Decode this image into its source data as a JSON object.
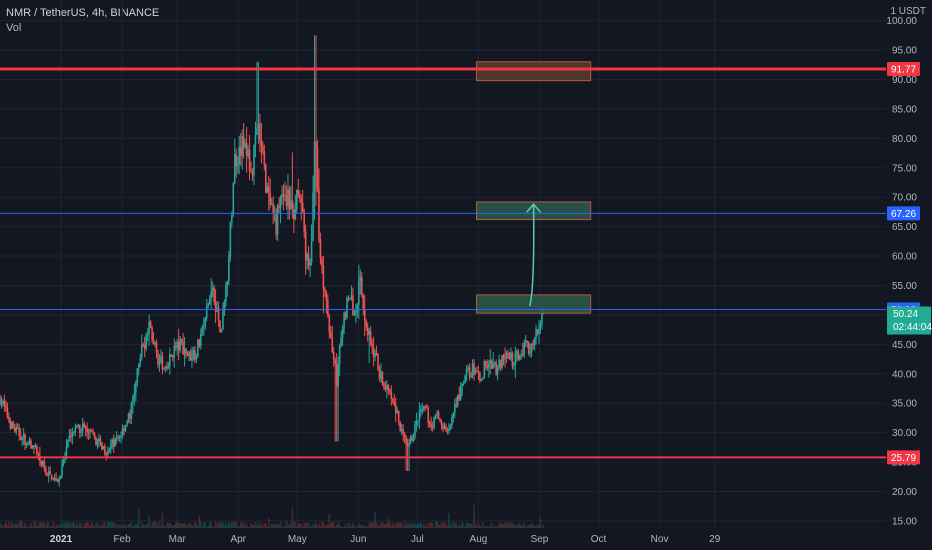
{
  "header": {
    "symbol": "NMR / TetherUS, 4h, BINANCE",
    "indicator": "Vol",
    "currency_unit": "1 USDT"
  },
  "colors": {
    "background": "#131722",
    "grid": "#1f2430",
    "axis_text": "#b2b5be",
    "up": "#26a69a",
    "down": "#ef5350",
    "support_resistance_red": "#f23645",
    "level_blue": "#2962ff",
    "current_price_badge": "#22ab94",
    "zone_fill_red": "#5c3b2e",
    "zone_fill_green": "#2e5a4a",
    "zone_stroke": "#b85a3a",
    "arrow": "#5fc9b3"
  },
  "chart_data": {
    "type": "candlestick",
    "title": "NMR / TetherUS, 4h, BINANCE",
    "ylim": [
      13.8,
      103.5
    ],
    "y_ticks": [
      15,
      20,
      25,
      30,
      35,
      40,
      45,
      50,
      55,
      60,
      65,
      70,
      75,
      80,
      85,
      90,
      95,
      100
    ],
    "y_tick_labels": [
      "15.00",
      "20.00",
      "25.00",
      "30.00",
      "35.00",
      "40.00",
      "45.00",
      "50.00",
      "55.00",
      "60.00",
      "65.00",
      "70.00",
      "75.00",
      "80.00",
      "85.00",
      "90.00",
      "95.00",
      "100.00"
    ],
    "x_ticks": [
      {
        "label": "2021",
        "day": 31,
        "bold": true
      },
      {
        "label": "Feb",
        "day": 62,
        "bold": false
      },
      {
        "label": "Mar",
        "day": 90,
        "bold": false
      },
      {
        "label": "Apr",
        "day": 121,
        "bold": false
      },
      {
        "label": "May",
        "day": 151,
        "bold": false
      },
      {
        "label": "Jun",
        "day": 182,
        "bold": false
      },
      {
        "label": "Jul",
        "day": 212,
        "bold": false
      },
      {
        "label": "Aug",
        "day": 243,
        "bold": false
      },
      {
        "label": "Sep",
        "day": 274,
        "bold": false
      },
      {
        "label": "Oct",
        "day": 304,
        "bold": false
      },
      {
        "label": "Nov",
        "day": 335,
        "bold": false
      },
      {
        "label": "29",
        "day": 363,
        "bold": false
      }
    ],
    "xlim_days": [
      0,
      450
    ],
    "price_path": [
      [
        0,
        36
      ],
      [
        6,
        31
      ],
      [
        12,
        29
      ],
      [
        18,
        27
      ],
      [
        24,
        23
      ],
      [
        30,
        22
      ],
      [
        36,
        30
      ],
      [
        42,
        31
      ],
      [
        48,
        29
      ],
      [
        54,
        27
      ],
      [
        60,
        29
      ],
      [
        66,
        33
      ],
      [
        72,
        44
      ],
      [
        76,
        48
      ],
      [
        80,
        43
      ],
      [
        84,
        40
      ],
      [
        88,
        44
      ],
      [
        92,
        45
      ],
      [
        96,
        43
      ],
      [
        100,
        44
      ],
      [
        104,
        49
      ],
      [
        108,
        55
      ],
      [
        112,
        47
      ],
      [
        116,
        58
      ],
      [
        119,
        76
      ],
      [
        122,
        79
      ],
      [
        125,
        78
      ],
      [
        128,
        74
      ],
      [
        131,
        82
      ],
      [
        134,
        75
      ],
      [
        137,
        68
      ],
      [
        140,
        65
      ],
      [
        143,
        71
      ],
      [
        146,
        70
      ],
      [
        149,
        67
      ],
      [
        152,
        73
      ],
      [
        155,
        61
      ],
      [
        158,
        58
      ],
      [
        160,
        85
      ],
      [
        162,
        62
      ],
      [
        165,
        54
      ],
      [
        168,
        46
      ],
      [
        171,
        39
      ],
      [
        174,
        48
      ],
      [
        177,
        54
      ],
      [
        180,
        50
      ],
      [
        183,
        56
      ],
      [
        186,
        48
      ],
      [
        189,
        45
      ],
      [
        192,
        41
      ],
      [
        195,
        38
      ],
      [
        198,
        36
      ],
      [
        201,
        34
      ],
      [
        204,
        30
      ],
      [
        207,
        27
      ],
      [
        210,
        30
      ],
      [
        213,
        33
      ],
      [
        216,
        34
      ],
      [
        219,
        31
      ],
      [
        222,
        33
      ],
      [
        225,
        31
      ],
      [
        228,
        30
      ],
      [
        231,
        34
      ],
      [
        234,
        37
      ],
      [
        237,
        40
      ],
      [
        240,
        41
      ],
      [
        243,
        39
      ],
      [
        246,
        41
      ],
      [
        249,
        42
      ],
      [
        252,
        41
      ],
      [
        255,
        42
      ],
      [
        258,
        43
      ],
      [
        261,
        42
      ],
      [
        264,
        44
      ],
      [
        267,
        45
      ],
      [
        270,
        44
      ],
      [
        273,
        47
      ],
      [
        276,
        50
      ]
    ],
    "horizontal_levels": [
      {
        "value": 91.77,
        "label": "91.77",
        "color": "#f23645",
        "width": 3
      },
      {
        "value": 67.26,
        "label": "67.26",
        "color": "#2962ff",
        "width": 1
      },
      {
        "value": 50.92,
        "label": "50.92",
        "color": "#2962ff",
        "width": 1
      },
      {
        "value": 25.79,
        "label": "25.79",
        "color": "#f23645",
        "width": 2
      }
    ],
    "current_price": {
      "value": 50.24,
      "label": "50.24",
      "countdown": "02:44:04"
    },
    "zones": [
      {
        "day_start": 242,
        "day_end": 300,
        "low": 89.8,
        "high": 93.0,
        "kind": "red"
      },
      {
        "day_start": 242,
        "day_end": 300,
        "low": 66.2,
        "high": 69.2,
        "kind": "green"
      },
      {
        "day_start": 242,
        "day_end": 300,
        "low": 50.3,
        "high": 53.4,
        "kind": "green"
      }
    ],
    "arrow": {
      "from_day": 271,
      "from_value": 52.5,
      "to_day": 271,
      "to_value": 68.8
    }
  }
}
